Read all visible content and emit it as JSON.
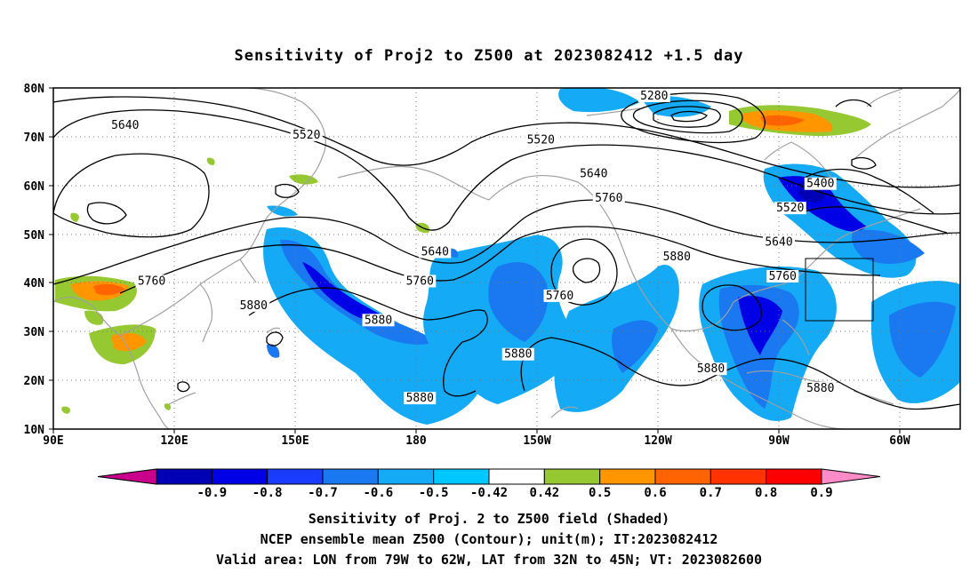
{
  "title": "Sensitivity of Proj2 to Z500 at 2023082412 +1.5 day",
  "lat_labels": [
    "80N",
    "70N",
    "60N",
    "50N",
    "40N",
    "30N",
    "20N",
    "10N"
  ],
  "lon_labels": [
    "90E",
    "120E",
    "150E",
    "180",
    "150W",
    "120W",
    "90W",
    "60W"
  ],
  "contour_labels": [
    {
      "text": "5280",
      "lon": -111,
      "lat": 78
    },
    {
      "text": "5640",
      "lon": 109,
      "lat": 72
    },
    {
      "text": "5520",
      "lon": 157,
      "lat": 70
    },
    {
      "text": "5520",
      "lon": -141,
      "lat": 69
    },
    {
      "text": "5640",
      "lon": -127,
      "lat": 62
    },
    {
      "text": "5760",
      "lon": -123,
      "lat": 57
    },
    {
      "text": "5400",
      "lon": -67,
      "lat": 60
    },
    {
      "text": "5520",
      "lon": -75,
      "lat": 55
    },
    {
      "text": "5640",
      "lon": -78,
      "lat": 48
    },
    {
      "text": "5760",
      "lon": -77,
      "lat": 41
    },
    {
      "text": "5880",
      "lon": -105,
      "lat": 45
    },
    {
      "text": "5760",
      "lon": 116,
      "lat": 40
    },
    {
      "text": "5880",
      "lon": 143,
      "lat": 35
    },
    {
      "text": "5640",
      "lon": 191,
      "lat": 46
    },
    {
      "text": "5760",
      "lon": 187,
      "lat": 40
    },
    {
      "text": "5880",
      "lon": 176,
      "lat": 32
    },
    {
      "text": "5760",
      "lon": -136,
      "lat": 37
    },
    {
      "text": "5880",
      "lon": -147,
      "lat": 25
    },
    {
      "text": "5880",
      "lon": -96,
      "lat": 22
    },
    {
      "text": "5880",
      "lon": -67,
      "lat": 18
    },
    {
      "text": "5880",
      "lon": 187,
      "lat": 16
    }
  ],
  "colorbar": {
    "ticks": [
      "-0.9",
      "-0.8",
      "-0.7",
      "-0.6",
      "-0.5",
      "-0.42",
      "0.42",
      "0.5",
      "0.6",
      "0.7",
      "0.8",
      "0.9"
    ],
    "colors": [
      "#c8008c",
      "#0000b4",
      "#0000e6",
      "#1a3cff",
      "#1a78f0",
      "#14aaf5",
      "#00c8ff",
      "#ffffff",
      "#96c832",
      "#ff9600",
      "#ff6400",
      "#ff3200",
      "#ff0000",
      "#ff8cc8"
    ]
  },
  "valid_box": {
    "lon_min": -79,
    "lon_max": -62,
    "lat_min": 32,
    "lat_max": 45
  },
  "footer": [
    "Sensitivity of Proj. 2 to Z500 field (Shaded)",
    "NCEP ensemble mean Z500 (Contour); unit(m); IT:2023082412",
    "Valid area: LON from 79W to 62W, LAT from 32N to 45N; VT: 2023082600"
  ]
}
